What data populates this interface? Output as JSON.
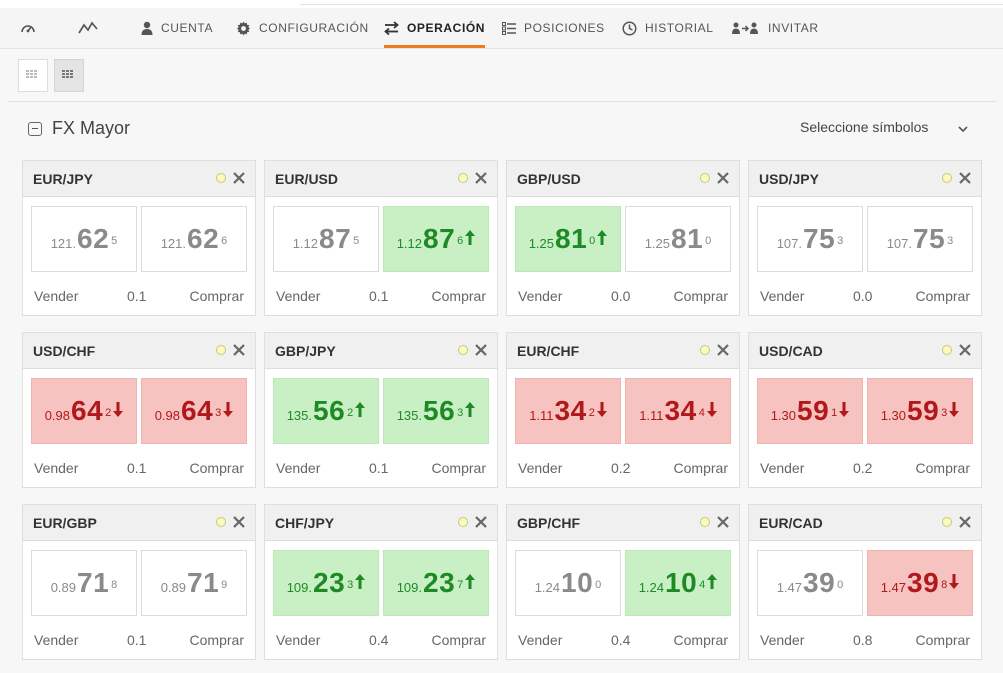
{
  "nav": {
    "items": [
      {
        "name": "tab-dashboard",
        "icon": "speedometer-icon",
        "label": ""
      },
      {
        "name": "tab-charts",
        "icon": "line-chart-icon",
        "label": ""
      },
      {
        "name": "tab-cuenta",
        "icon": "user-icon",
        "label": "CUENTA"
      },
      {
        "name": "tab-configuracion",
        "icon": "gear-icon",
        "label": "CONFIGURACIÓN"
      },
      {
        "name": "tab-operacion",
        "icon": "swap-arrows-icon",
        "label": "OPERACIÓN",
        "active": true
      },
      {
        "name": "tab-posiciones",
        "icon": "list-icon",
        "label": "POSICIONES"
      },
      {
        "name": "tab-historial",
        "icon": "clock-icon",
        "label": "HISTORIAL"
      },
      {
        "name": "tab-invitar",
        "icon": "invite-users-icon",
        "label": "INVITAR"
      }
    ]
  },
  "section": {
    "title": "FX Mayor",
    "select_label": "Seleccione símbolos"
  },
  "labels": {
    "sell": "Vender",
    "buy": "Comprar"
  },
  "colors": {
    "accent": "#f07b1d",
    "up_bg": "#c9f0c4",
    "up_text": "#1e8a26",
    "down_bg": "#f7c3c0",
    "down_text": "#b0181c",
    "neutral_text": "#8a8a8a"
  },
  "cards": [
    {
      "symbol": "EUR/JPY",
      "spread": "0.1",
      "sell": {
        "prefix": "121.",
        "big": "62",
        "sup": "5",
        "state": "neutral"
      },
      "buy": {
        "prefix": "121.",
        "big": "62",
        "sup": "6",
        "state": "neutral"
      }
    },
    {
      "symbol": "EUR/USD",
      "spread": "0.1",
      "sell": {
        "prefix": "1.12",
        "big": "87",
        "sup": "5",
        "state": "neutral"
      },
      "buy": {
        "prefix": "1.12",
        "big": "87",
        "sup": "6",
        "state": "up"
      }
    },
    {
      "symbol": "GBP/USD",
      "spread": "0.0",
      "sell": {
        "prefix": "1.25",
        "big": "81",
        "sup": "0",
        "state": "up"
      },
      "buy": {
        "prefix": "1.25",
        "big": "81",
        "sup": "0",
        "state": "neutral"
      }
    },
    {
      "symbol": "USD/JPY",
      "spread": "0.0",
      "sell": {
        "prefix": "107.",
        "big": "75",
        "sup": "3",
        "state": "neutral"
      },
      "buy": {
        "prefix": "107.",
        "big": "75",
        "sup": "3",
        "state": "neutral"
      }
    },
    {
      "symbol": "USD/CHF",
      "spread": "0.1",
      "sell": {
        "prefix": "0.98",
        "big": "64",
        "sup": "2",
        "state": "down"
      },
      "buy": {
        "prefix": "0.98",
        "big": "64",
        "sup": "3",
        "state": "down"
      }
    },
    {
      "symbol": "GBP/JPY",
      "spread": "0.1",
      "sell": {
        "prefix": "135.",
        "big": "56",
        "sup": "2",
        "state": "up"
      },
      "buy": {
        "prefix": "135.",
        "big": "56",
        "sup": "3",
        "state": "up"
      }
    },
    {
      "symbol": "EUR/CHF",
      "spread": "0.2",
      "sell": {
        "prefix": "1.11",
        "big": "34",
        "sup": "2",
        "state": "down"
      },
      "buy": {
        "prefix": "1.11",
        "big": "34",
        "sup": "4",
        "state": "down"
      }
    },
    {
      "symbol": "USD/CAD",
      "spread": "0.2",
      "sell": {
        "prefix": "1.30",
        "big": "59",
        "sup": "1",
        "state": "down"
      },
      "buy": {
        "prefix": "1.30",
        "big": "59",
        "sup": "3",
        "state": "down"
      }
    },
    {
      "symbol": "EUR/GBP",
      "spread": "0.1",
      "sell": {
        "prefix": "0.89",
        "big": "71",
        "sup": "8",
        "state": "neutral"
      },
      "buy": {
        "prefix": "0.89",
        "big": "71",
        "sup": "9",
        "state": "neutral"
      }
    },
    {
      "symbol": "CHF/JPY",
      "spread": "0.4",
      "sell": {
        "prefix": "109.",
        "big": "23",
        "sup": "3",
        "state": "up"
      },
      "buy": {
        "prefix": "109.",
        "big": "23",
        "sup": "7",
        "state": "up"
      }
    },
    {
      "symbol": "GBP/CHF",
      "spread": "0.4",
      "sell": {
        "prefix": "1.24",
        "big": "10",
        "sup": "0",
        "state": "neutral"
      },
      "buy": {
        "prefix": "1.24",
        "big": "10",
        "sup": "4",
        "state": "up"
      }
    },
    {
      "symbol": "EUR/CAD",
      "spread": "0.8",
      "sell": {
        "prefix": "1.47",
        "big": "39",
        "sup": "0",
        "state": "neutral"
      },
      "buy": {
        "prefix": "1.47",
        "big": "39",
        "sup": "8",
        "state": "down"
      }
    }
  ]
}
